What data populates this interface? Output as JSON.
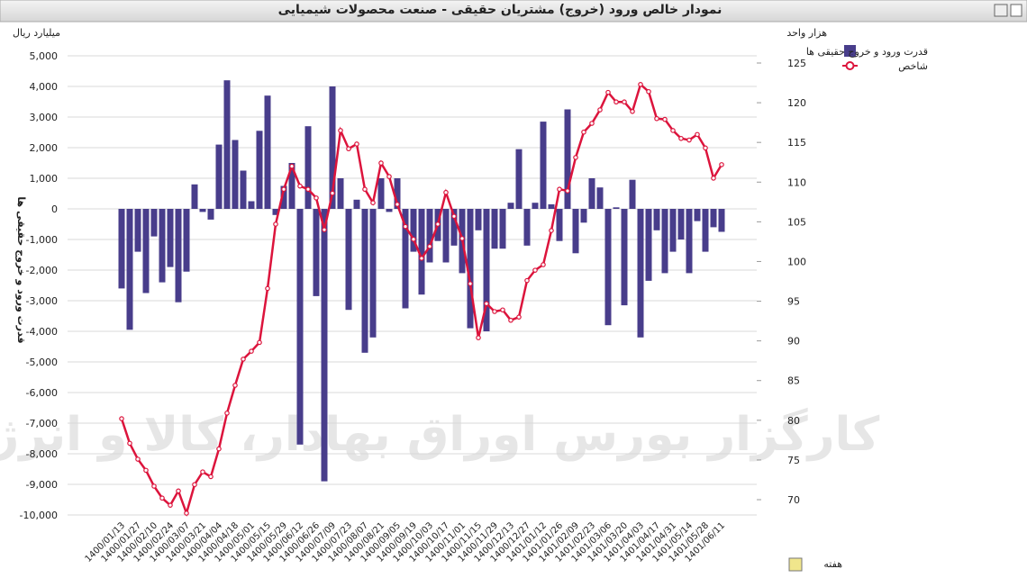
{
  "chart_data": {
    "type": "bar_line",
    "title": "نمودار خالص ورود (خروج) مشتریان حقیقی - صنعت محصولات شیمیایی",
    "y_unit": "میلیارد ریال",
    "y2_unit": "هزار واحد",
    "y_label": "قدرت ورود و خروج حقیقی ها",
    "x_label": "هفته",
    "watermark": "کارگزار بورس اوراق بهادار، کالا و انرژی",
    "categories": [
      "1400/01/13",
      null,
      "1400/01/27",
      null,
      "1400/02/10",
      null,
      "1400/02/24",
      null,
      "1400/03/07",
      null,
      "1400/03/21",
      null,
      "1400/04/04",
      null,
      "1400/04/18",
      null,
      "1400/05/01",
      null,
      "1400/05/15",
      null,
      "1400/05/29",
      null,
      "1400/06/12",
      null,
      "1400/06/26",
      null,
      "1400/07/09",
      null,
      "1400/07/23",
      null,
      "1400/08/07",
      null,
      "1400/08/21",
      null,
      "1400/09/05",
      null,
      "1400/09/19",
      null,
      "1400/10/03",
      null,
      "1400/10/17",
      null,
      "1400/11/01",
      null,
      "1400/11/15",
      null,
      "1400/11/29",
      null,
      "1400/12/13",
      null,
      "1400/12/27",
      null,
      "1401/01/12",
      null,
      "1401/01/26",
      null,
      "1401/02/09",
      null,
      "1401/02/23",
      null,
      "1401/03/06",
      null,
      "1401/03/20",
      null,
      "1401/04/03",
      null,
      "1401/04/17",
      null,
      "1401/04/31",
      null,
      "1401/05/14",
      null,
      "1401/05/28",
      null,
      "1401/06/11"
    ],
    "series": [
      {
        "name": "قدرت ورود و خروج حقیقی ها",
        "color": "#483d8b",
        "kind": "bar",
        "values": [
          -2600,
          -3950,
          -1400,
          -2750,
          -900,
          -2400,
          -1900,
          -3050,
          -2050,
          800,
          -100,
          -350,
          2100,
          4200,
          2250,
          1250,
          250,
          2550,
          3700,
          -200,
          750,
          1500,
          -7700,
          2700,
          -2850,
          -8900,
          4000,
          1000,
          -3300,
          300,
          -4700,
          -4200,
          1000,
          -100,
          1000,
          -3250,
          -1400,
          -2800,
          -1750,
          -1050,
          -1750,
          -1200,
          -2100,
          -3900,
          -700,
          -4000,
          -1300,
          -1300,
          200,
          1950,
          -1200,
          200,
          2850,
          150,
          -1050,
          3250,
          -1450,
          -450,
          1000,
          700,
          -3800,
          50,
          -3150,
          950,
          -4200,
          -2350,
          -700,
          -2100,
          -1400,
          -1000,
          -2100,
          -400,
          -1400,
          -600,
          -750
        ]
      },
      {
        "name": "شاخص",
        "color": "#dc143c",
        "kind": "line",
        "axis": "y2",
        "values": [
          80.2,
          77.1,
          75.1,
          73.7,
          71.7,
          70.2,
          69.3,
          71.1,
          68.3,
          71.9,
          73.5,
          72.9,
          76.4,
          80.9,
          84.4,
          87.7,
          88.7,
          89.8,
          96.6,
          104.7,
          109.1,
          112.0,
          109.5,
          109.1,
          108.0,
          104.0,
          108.6,
          116.5,
          114.2,
          114.8,
          109.1,
          107.4,
          112.4,
          110.7,
          107.2,
          104.4,
          102.8,
          100.4,
          101.9,
          104.7,
          108.7,
          105.7,
          102.9,
          97.2,
          90.4,
          94.7,
          93.7,
          93.9,
          92.6,
          93.0,
          97.6,
          98.9,
          99.6,
          103.9,
          109.1,
          108.9,
          113.1,
          116.3,
          117.4,
          119.1,
          121.3,
          120.1,
          120.1,
          118.9,
          122.3,
          121.4,
          118.0,
          117.9,
          116.5,
          115.5,
          115.3,
          116.0,
          114.3,
          110.5,
          112.2
        ]
      }
    ],
    "ylim": [
      -10000,
      5000
    ],
    "yticks": [
      {
        "value": -10000,
        "label": "-10,000"
      },
      {
        "value": -9000,
        "label": "-9,000"
      },
      {
        "value": -8000,
        "label": "-8,000"
      },
      {
        "value": -7000,
        "label": "-7,000"
      },
      {
        "value": -6000,
        "label": "-6,000"
      },
      {
        "value": -5000,
        "label": "-5,000"
      },
      {
        "value": -4000,
        "label": "-4,000"
      },
      {
        "value": -3000,
        "label": "-3,000"
      },
      {
        "value": -2000,
        "label": "-2,000"
      },
      {
        "value": -1000,
        "label": "-1,000"
      },
      0,
      {
        "value": 1000,
        "label": "1,000"
      },
      {
        "value": 2000,
        "label": "2,000"
      },
      {
        "value": 3000,
        "label": "3,000"
      },
      {
        "value": 4000,
        "label": "4,000"
      },
      {
        "value": 5000,
        "label": "5,000"
      }
    ],
    "y2lim": [
      70,
      125
    ],
    "y2ticks": [
      70,
      75,
      80,
      85,
      90,
      95,
      100,
      105,
      110,
      115,
      120,
      125
    ],
    "grid": true
  }
}
